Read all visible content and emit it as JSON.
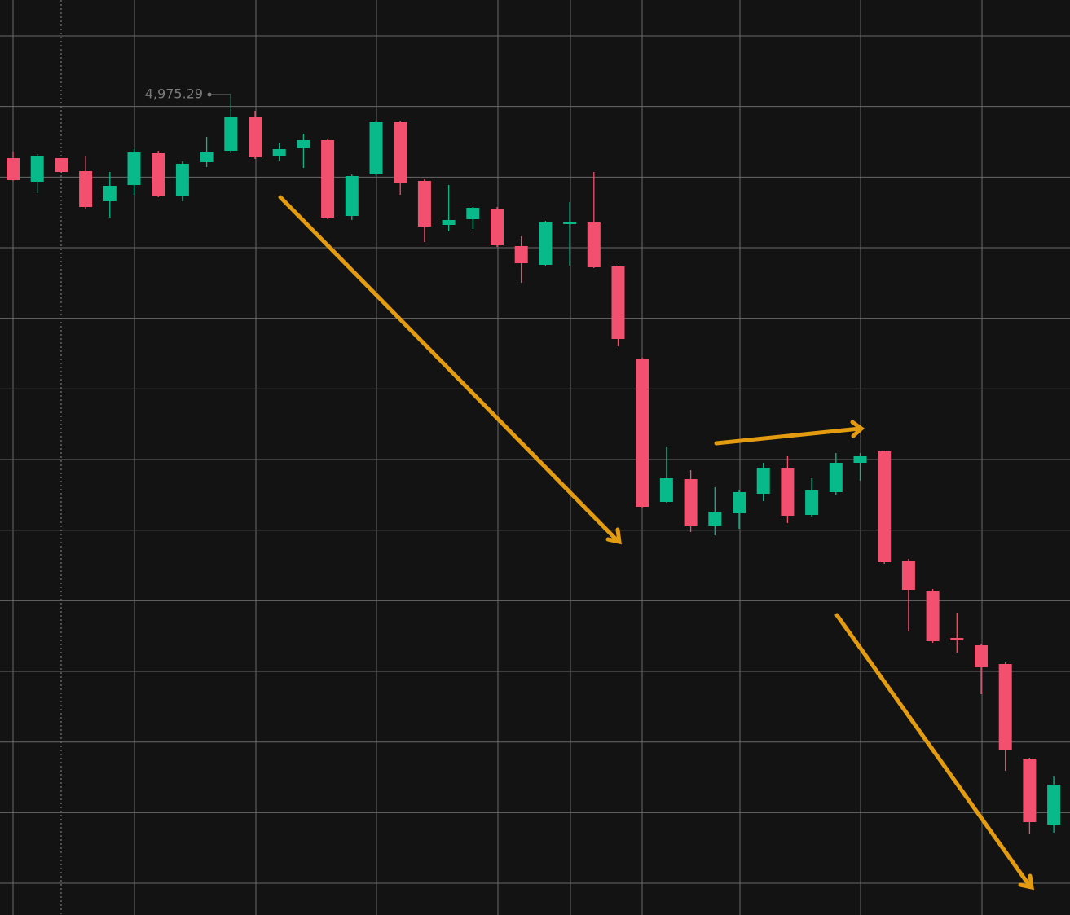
{
  "chart_data": {
    "type": "candlestick",
    "up_color": "#08b98a",
    "down_color": "#f2506e",
    "ylim": [
      4723.54,
      5004.29
    ],
    "high_label": "4,975.29",
    "open": [
      4955.79,
      4948.54,
      4955.79,
      4951.79,
      4942.54,
      4947.54,
      4957.29,
      4944.29,
      4954.54,
      4958.04,
      4968.29,
      4956.29,
      4958.79,
      4961.29,
      4938.04,
      4950.79,
      4966.79,
      4948.79,
      4935.29,
      4937.04,
      4940.29,
      4928.79,
      4923.04,
      4935.54,
      4936.04,
      4922.54,
      4894.29,
      4850.29,
      4857.29,
      4843.04,
      4846.79,
      4852.79,
      4860.54,
      4846.29,
      4853.29,
      4862.29,
      4865.79,
      4832.29,
      4823.04,
      4808.54,
      4806.29,
      4800.54,
      4771.54,
      4751.29
    ],
    "high": [
      4957.79,
      4957.04,
      4955.79,
      4956.29,
      4951.54,
      4958.54,
      4958.04,
      4954.79,
      4962.29,
      4975.29,
      4970.29,
      4960.29,
      4963.29,
      4961.79,
      4950.79,
      4967.04,
      4967.04,
      4949.29,
      4947.54,
      4940.79,
      4940.79,
      4931.79,
      4936.54,
      4942.29,
      4951.54,
      4922.79,
      4894.54,
      4867.29,
      4860.04,
      4854.79,
      4854.04,
      4862.29,
      4864.29,
      4857.54,
      4865.29,
      4865.29,
      4866.04,
      4832.79,
      4823.54,
      4816.29,
      4806.79,
      4801.29,
      4771.79,
      4766.04
    ],
    "low": [
      4948.79,
      4945.04,
      4951.29,
      4940.29,
      4937.54,
      4944.54,
      4943.79,
      4942.54,
      4953.04,
      4957.29,
      4955.54,
      4955.04,
      4952.79,
      4937.04,
      4936.79,
      4950.29,
      4944.54,
      4930.04,
      4933.29,
      4934.04,
      4928.54,
      4917.54,
      4922.54,
      4922.79,
      4922.04,
      4898.04,
      4848.54,
      4850.04,
      4841.04,
      4840.04,
      4842.04,
      4850.54,
      4843.79,
      4845.79,
      4852.29,
      4856.79,
      4831.29,
      4810.54,
      4807.04,
      4804.04,
      4791.29,
      4767.79,
      4748.29,
      4748.79
    ],
    "close": [
      4949.04,
      4956.29,
      4951.54,
      4940.79,
      4947.29,
      4957.54,
      4944.29,
      4954.04,
      4957.79,
      4968.29,
      4956.04,
      4958.54,
      4961.29,
      4937.54,
      4950.29,
      4966.79,
      4948.29,
      4934.79,
      4936.79,
      4940.54,
      4929.04,
      4923.54,
      4936.04,
      4936.29,
      4922.29,
      4900.29,
      4848.79,
      4857.54,
      4842.79,
      4847.29,
      4853.29,
      4860.79,
      4846.04,
      4853.79,
      4862.29,
      4864.29,
      4831.79,
      4823.29,
      4807.54,
      4807.79,
      4799.54,
      4774.29,
      4752.04,
      4763.54
    ]
  }
}
